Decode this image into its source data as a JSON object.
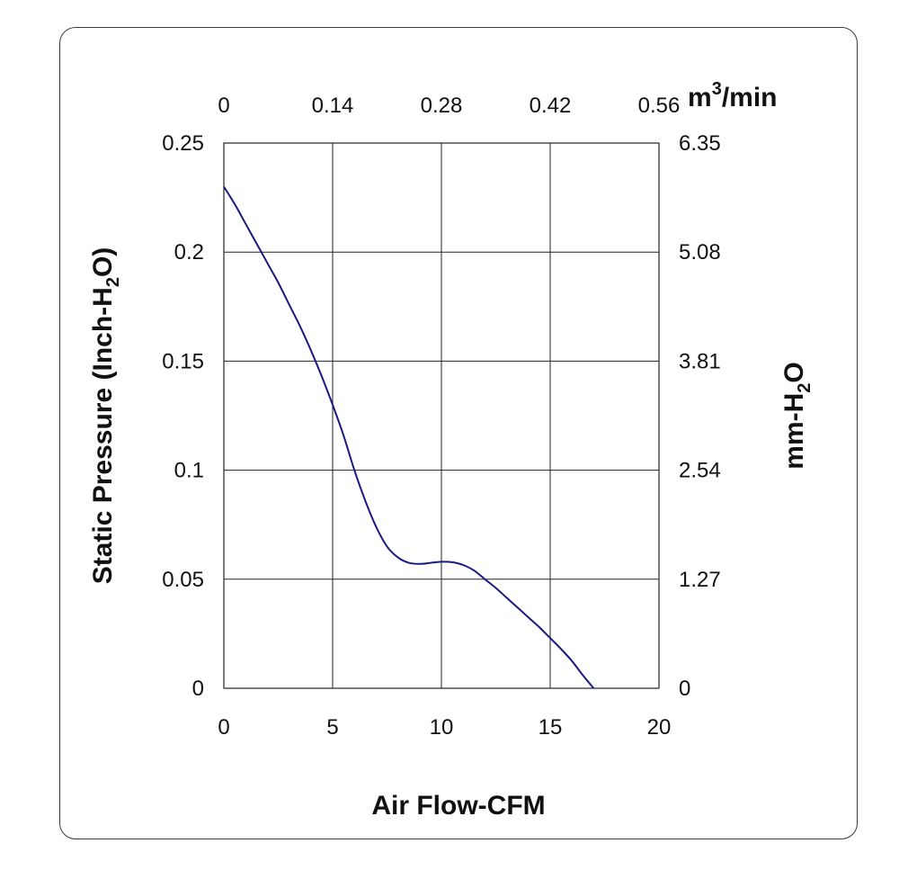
{
  "chart_data": {
    "type": "line",
    "xlabel": "Air Flow-CFM",
    "ylabel": {
      "pre": "Static Pressure (Inch-H",
      "sub": "2",
      "post": "O)"
    },
    "y2label": {
      "pre": "mm-H",
      "sub": "2",
      "post": "O"
    },
    "x2unit": {
      "pre": "m",
      "sup": "3",
      "post": "/min"
    },
    "xlim": [
      0,
      20
    ],
    "ylim": [
      0,
      0.25
    ],
    "grid": true,
    "x_ticks": [
      "0",
      "5",
      "10",
      "15",
      "20"
    ],
    "x2_ticks": [
      "0",
      "0.14",
      "0.28",
      "0.42",
      "0.56"
    ],
    "y_ticks": [
      "0",
      "0.05",
      "0.1",
      "0.15",
      "0.2",
      "0.25"
    ],
    "y2_ticks": [
      "0",
      "1.27",
      "2.54",
      "3.81",
      "5.08",
      "6.35"
    ],
    "line_color": "#1a1a80",
    "series": [
      {
        "x": [
          0,
          0.5,
          1,
          1.5,
          2,
          2.5,
          3,
          3.5,
          4,
          4.5,
          5,
          5.5,
          6,
          6.5,
          7,
          7.5,
          8,
          8.5,
          9,
          9.5,
          10,
          10.5,
          11,
          11.5,
          12,
          12.5,
          13,
          13.5,
          14,
          14.5,
          15,
          15.5,
          16,
          16.5,
          17
        ],
        "y": [
          0.23,
          0.222,
          0.213,
          0.204,
          0.195,
          0.186,
          0.176,
          0.166,
          0.155,
          0.143,
          0.13,
          0.116,
          0.1,
          0.086,
          0.074,
          0.065,
          0.06,
          0.0575,
          0.057,
          0.0575,
          0.058,
          0.0578,
          0.0565,
          0.054,
          0.05,
          0.046,
          0.0415,
          0.037,
          0.0325,
          0.028,
          0.023,
          0.018,
          0.0125,
          0.006,
          0
        ]
      }
    ]
  }
}
